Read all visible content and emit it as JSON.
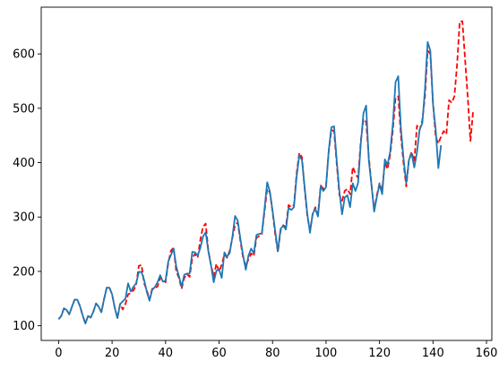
{
  "chart_data": {
    "type": "line",
    "title": "",
    "xlabel": "",
    "ylabel": "",
    "xlim": [
      -6.5,
      162
    ],
    "ylim": [
      73,
      686
    ],
    "grid": false,
    "legend": "none",
    "x_ticks": [
      0,
      20,
      40,
      60,
      80,
      100,
      120,
      140,
      160
    ],
    "y_ticks": [
      100,
      200,
      300,
      400,
      500,
      600
    ],
    "series": [
      {
        "color": "#1f77b4",
        "style": "solid",
        "x_start": 0,
        "values": [
          112,
          118,
          132,
          129,
          121,
          135,
          148,
          148,
          136,
          119,
          104,
          118,
          115,
          126,
          141,
          135,
          125,
          149,
          170,
          170,
          158,
          133,
          114,
          140,
          145,
          150,
          178,
          163,
          172,
          178,
          199,
          199,
          184,
          162,
          146,
          166,
          171,
          180,
          193,
          181,
          183,
          218,
          230,
          242,
          209,
          191,
          172,
          194,
          196,
          196,
          236,
          235,
          229,
          243,
          264,
          272,
          237,
          211,
          180,
          201,
          204,
          188,
          235,
          227,
          234,
          264,
          302,
          293,
          259,
          229,
          203,
          229,
          242,
          233,
          267,
          269,
          270,
          315,
          364,
          347,
          312,
          274,
          237,
          278,
          284,
          277,
          317,
          313,
          318,
          374,
          413,
          405,
          355,
          306,
          271,
          306,
          315,
          301,
          356,
          348,
          355,
          422,
          465,
          467,
          404,
          347,
          305,
          336,
          340,
          318,
          362,
          348,
          363,
          435,
          491,
          505,
          404,
          359,
          310,
          337,
          360,
          342,
          406,
          396,
          420,
          472,
          548,
          559,
          463,
          407,
          362,
          405,
          417,
          391,
          419,
          461,
          472,
          535,
          622,
          606,
          508,
          461,
          390,
          432
        ]
      },
      {
        "color": "#ff0000",
        "style": "dashed",
        "x_start": 0,
        "values": [
          112,
          118,
          132,
          129,
          121,
          135,
          148,
          148,
          136,
          119,
          104,
          118,
          115,
          126,
          141,
          135,
          125,
          149,
          170,
          170,
          158,
          133,
          114,
          140,
          130,
          140,
          158,
          160,
          165,
          175,
          210,
          212,
          178,
          165,
          148,
          168,
          170,
          172,
          188,
          185,
          180,
          215,
          238,
          244,
          200,
          188,
          168,
          188,
          195,
          190,
          225,
          232,
          225,
          258,
          282,
          288,
          238,
          212,
          190,
          214,
          200,
          212,
          232,
          225,
          238,
          262,
          286,
          290,
          255,
          225,
          210,
          222,
          233,
          228,
          262,
          265,
          268,
          310,
          352,
          345,
          310,
          268,
          235,
          275,
          285,
          282,
          322,
          318,
          322,
          380,
          418,
          410,
          352,
          302,
          275,
          305,
          318,
          305,
          358,
          352,
          358,
          420,
          460,
          458,
          398,
          340,
          330,
          348,
          352,
          342,
          392,
          380,
          372,
          440,
          480,
          475,
          410,
          360,
          312,
          340,
          362,
          350,
          400,
          388,
          415,
          460,
          520,
          522,
          450,
          398,
          356,
          405,
          420,
          402,
          468,
          460,
          478,
          522,
          606,
          600,
          510,
          448,
          435,
          448,
          458,
          452,
          515,
          510,
          522,
          580,
          660,
          660,
          590,
          520,
          440,
          495
        ]
      }
    ]
  }
}
